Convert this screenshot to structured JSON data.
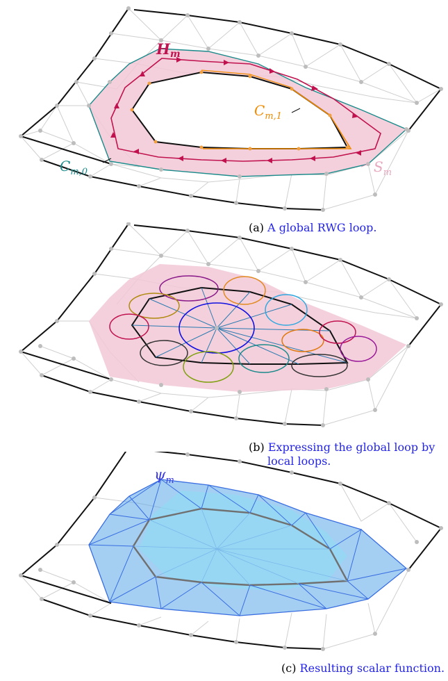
{
  "panel_a": {
    "caption_tag": "(a)",
    "caption_text": "A global RWG loop.",
    "label_h": "H",
    "label_h_sub": "m",
    "label_c1": "C",
    "label_c1_sub": "m,1",
    "label_c0": "C",
    "label_c0_sub": "m,0",
    "label_s": "S",
    "label_s_sub": "m"
  },
  "panel_b": {
    "caption_tag": "(b)",
    "caption_line1": "Expressing the global loop by",
    "caption_line2": "local loops."
  },
  "panel_c": {
    "caption_tag": "(c)",
    "caption_text": "Resulting scalar function.",
    "label_psi": "ψ",
    "label_psi_sub": "m"
  },
  "colors": {
    "strip_pink": "#f2c8d6",
    "loop_crimson": "#c0124f",
    "boundary_teal": "#1a8a8a",
    "inner_orange": "#f08a00",
    "caption_blue": "#2424e6",
    "surface_blue": "#5aa8ea",
    "surface_cyan": "#8fdcf5",
    "mesh_gray": "#c8c8c8"
  }
}
